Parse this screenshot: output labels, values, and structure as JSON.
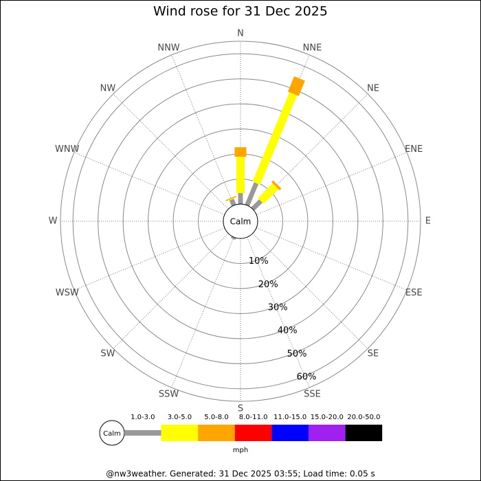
{
  "chart_data": {
    "type": "wind-rose",
    "title": "Wind rose for 31 Dec 2025",
    "categories": [
      "N",
      "NNE",
      "NE",
      "ENE",
      "E",
      "ESE",
      "SE",
      "SSE",
      "S",
      "SSW",
      "SW",
      "WSW",
      "W",
      "WNW",
      "NW",
      "NNW"
    ],
    "calm_label": "Calm",
    "unit": "mph",
    "rlim": [
      0,
      65
    ],
    "rticks": [
      {
        "value": 10,
        "label": "10%"
      },
      {
        "value": 20,
        "label": "20%"
      },
      {
        "value": 30,
        "label": "30%"
      },
      {
        "value": 40,
        "label": "40%"
      },
      {
        "value": 50,
        "label": "50%"
      },
      {
        "value": 60,
        "label": "60%"
      }
    ],
    "series": [
      {
        "name": "1.0-3.0",
        "color": "#999999",
        "values": [
          4.4,
          9.6,
          4.6,
          0,
          0,
          0,
          0,
          0,
          0,
          0.8,
          0,
          0,
          0,
          0,
          0,
          2.5
        ]
      },
      {
        "name": "3.0-5.0",
        "color": "#ffff00",
        "values": [
          14.5,
          38.6,
          8.3,
          0,
          0,
          0,
          0,
          0,
          0,
          0,
          0,
          0,
          0,
          0,
          0,
          0.3
        ]
      },
      {
        "name": "5.0-8.0",
        "color": "#ffa500",
        "values": [
          3.8,
          6.6,
          1.0,
          0,
          0,
          0,
          0,
          0,
          0,
          0,
          0,
          0,
          0,
          0,
          0,
          0.4
        ]
      },
      {
        "name": "8.0-11.0",
        "color": "#ff0000",
        "values": [
          0,
          0,
          0,
          0,
          0,
          0,
          0,
          0,
          0,
          0,
          0,
          0,
          0,
          0,
          0,
          0
        ]
      },
      {
        "name": "11.0-15.0",
        "color": "#0000ff",
        "values": [
          0,
          0,
          0,
          0,
          0,
          0,
          0,
          0,
          0,
          0,
          0,
          0,
          0,
          0,
          0,
          0
        ]
      },
      {
        "name": "15.0-20.0",
        "color": "#a020f0",
        "values": [
          0,
          0,
          0,
          0,
          0,
          0,
          0,
          0,
          0,
          0,
          0,
          0,
          0,
          0,
          0,
          0
        ]
      },
      {
        "name": "20.0-50.0",
        "color": "#000000",
        "values": [
          0,
          0,
          0,
          0,
          0,
          0,
          0,
          0,
          0,
          0,
          0,
          0,
          0,
          0,
          0,
          0
        ]
      }
    ],
    "footer": "@nw3weather. Generated: 31 Dec 2025 03:55; Load time: 0.05 s"
  }
}
